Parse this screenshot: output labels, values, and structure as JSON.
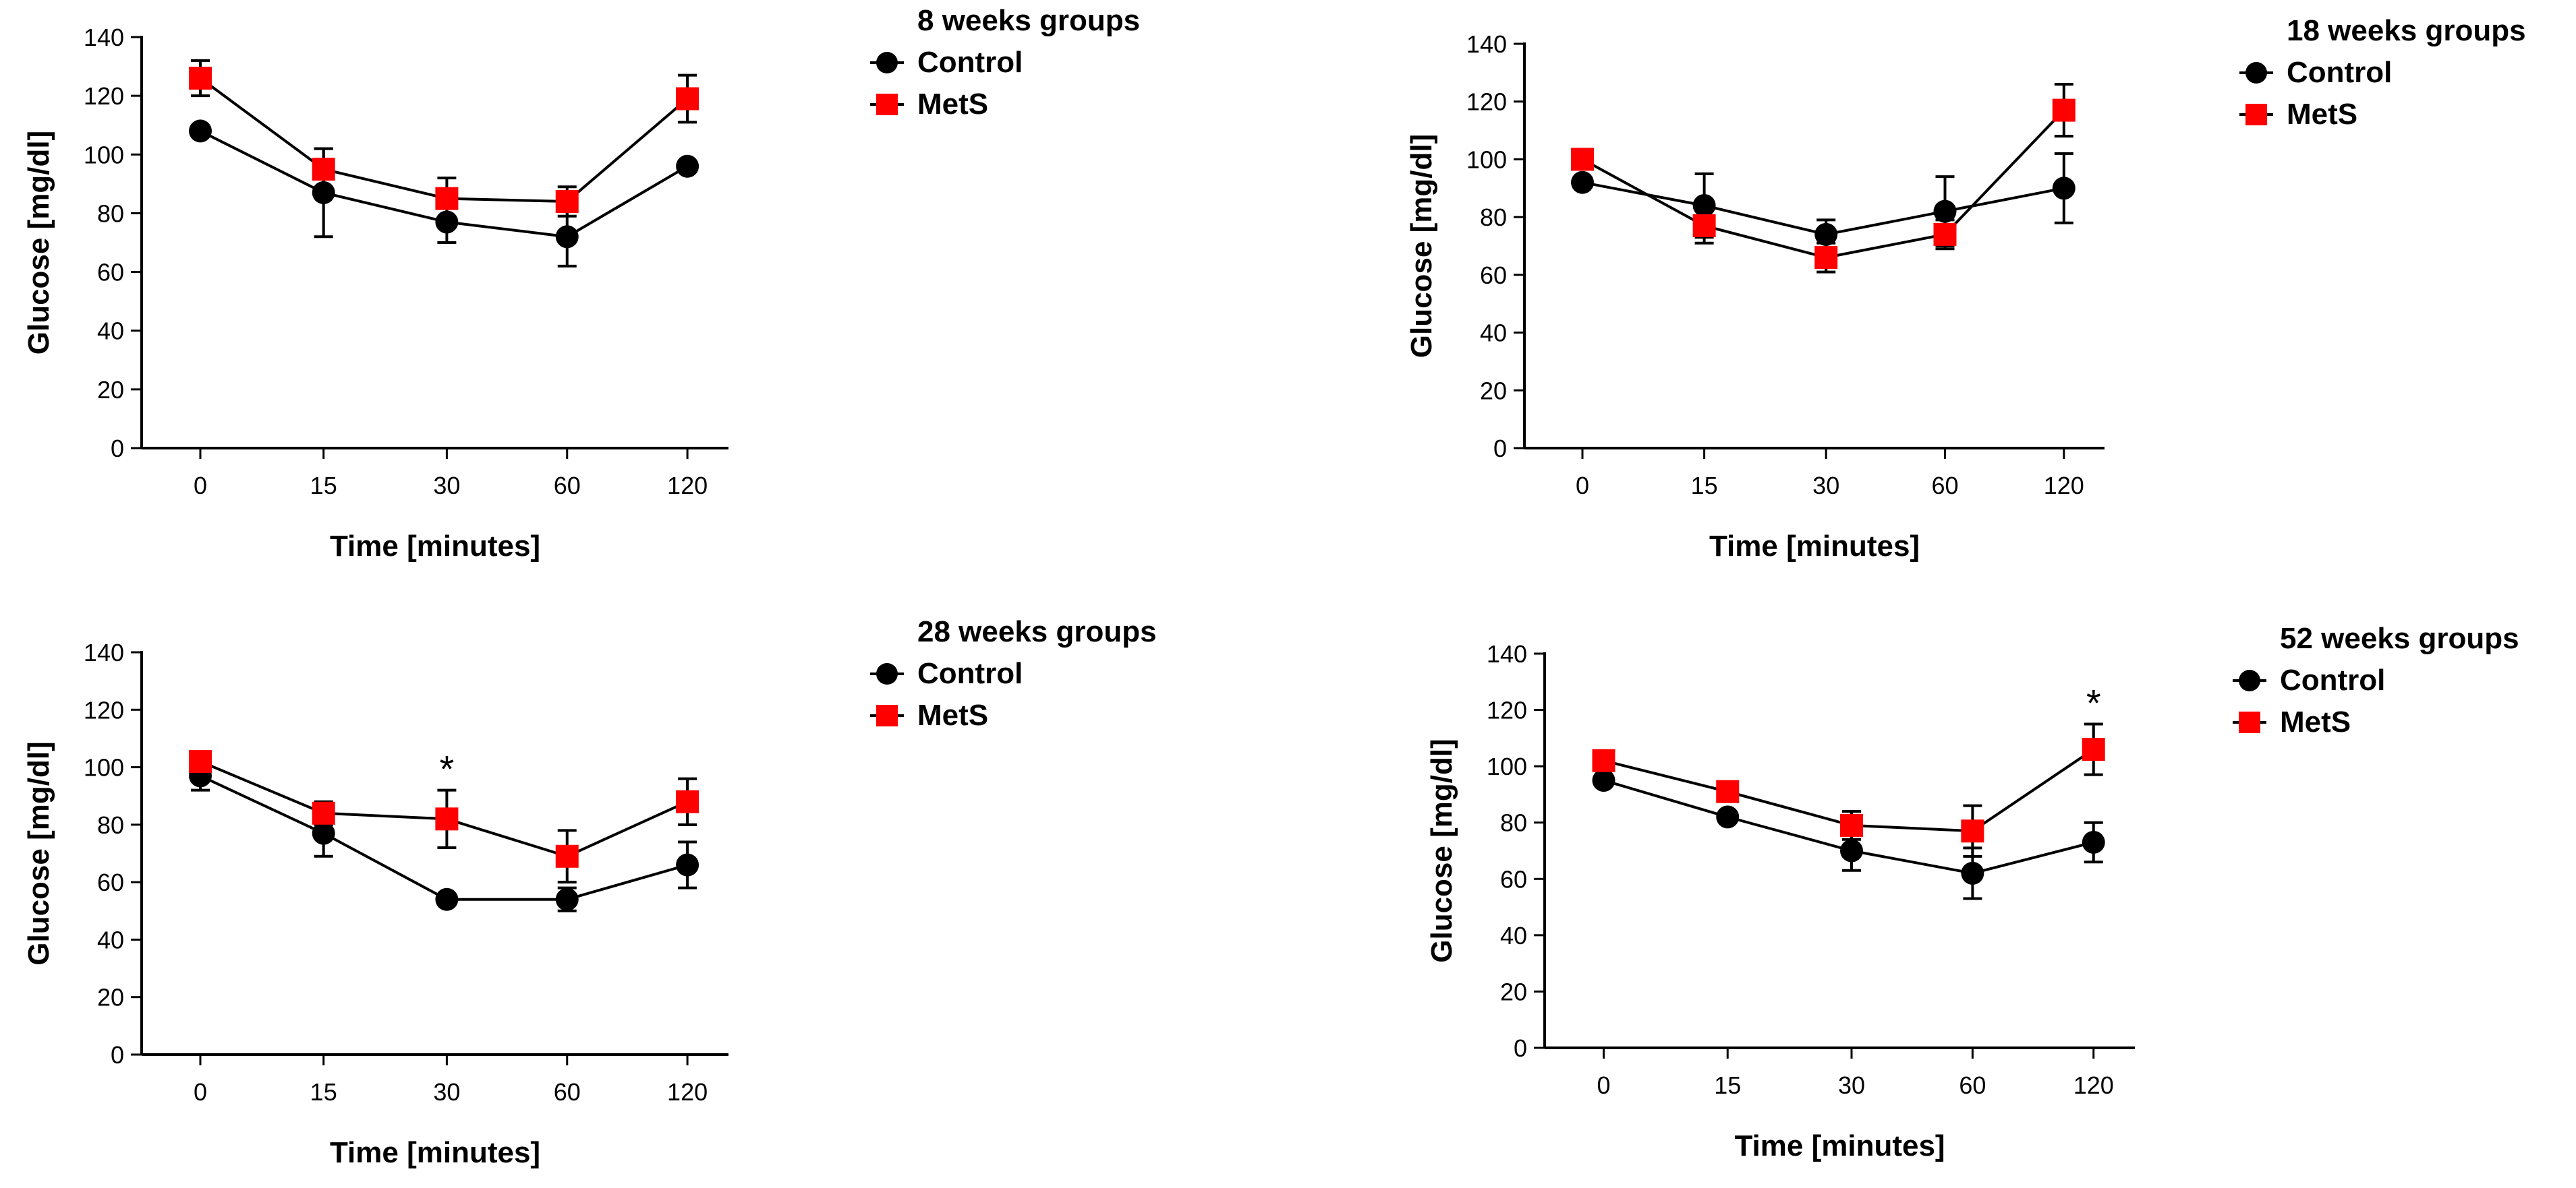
{
  "colors": {
    "control": "#000000",
    "mets": "#ff0000",
    "axis": "#000000"
  },
  "chart_data": [
    {
      "type": "line",
      "title": "8 weeks groups",
      "xlabel": "Time [minutes]",
      "ylabel": "Glucose [mg/dl]",
      "categories": [
        "0",
        "15",
        "30",
        "60",
        "120"
      ],
      "ylim": [
        0,
        140
      ],
      "yticks": [
        0,
        20,
        40,
        60,
        80,
        100,
        120,
        140
      ],
      "legend": {
        "title": "8 weeks groups",
        "placement": "top-right"
      },
      "series": [
        {
          "name": "Control",
          "marker": "circle",
          "values": [
            108,
            87,
            77,
            72,
            96
          ],
          "errors": [
            0,
            15,
            7,
            10,
            0
          ]
        },
        {
          "name": "MetS",
          "marker": "square",
          "values": [
            126,
            95,
            85,
            84,
            119
          ],
          "errors": [
            6,
            7,
            7,
            5,
            8
          ]
        }
      ],
      "annotations": []
    },
    {
      "type": "line",
      "title": "18 weeks groups",
      "xlabel": "Time [minutes]",
      "ylabel": "Glucose [mg/dl]",
      "categories": [
        "0",
        "15",
        "30",
        "60",
        "120"
      ],
      "ylim": [
        0,
        140
      ],
      "yticks": [
        0,
        20,
        40,
        60,
        80,
        100,
        120,
        140
      ],
      "legend": {
        "title": "18 weeks groups",
        "placement": "top-right"
      },
      "series": [
        {
          "name": "Control",
          "marker": "circle",
          "values": [
            92,
            84,
            74,
            82,
            90
          ],
          "errors": [
            0,
            11,
            5,
            12,
            12
          ]
        },
        {
          "name": "MetS",
          "marker": "square",
          "values": [
            100,
            77,
            66,
            74,
            117
          ],
          "errors": [
            0,
            6,
            5,
            5,
            9
          ]
        }
      ],
      "annotations": []
    },
    {
      "type": "line",
      "title": "28 weeks groups",
      "xlabel": "Time [minutes]",
      "ylabel": "Glucose [mg/dl]",
      "categories": [
        "0",
        "15",
        "30",
        "60",
        "120"
      ],
      "ylim": [
        0,
        140
      ],
      "yticks": [
        0,
        20,
        40,
        60,
        80,
        100,
        120,
        140
      ],
      "legend": {
        "title": "28 weeks groups",
        "placement": "top-right"
      },
      "series": [
        {
          "name": "Control",
          "marker": "circle",
          "values": [
            97,
            77,
            54,
            54,
            66
          ],
          "errors": [
            5,
            8,
            0,
            4,
            8
          ]
        },
        {
          "name": "MetS",
          "marker": "square",
          "values": [
            102,
            84,
            82,
            69,
            88
          ],
          "errors": [
            3,
            4,
            10,
            9,
            8
          ]
        }
      ],
      "annotations": [
        {
          "category": "30",
          "text": "*"
        }
      ]
    },
    {
      "type": "line",
      "title": "52 weeks groups",
      "xlabel": "Time [minutes]",
      "ylabel": "Glucose [mg/dl]",
      "categories": [
        "0",
        "15",
        "30",
        "60",
        "120"
      ],
      "ylim": [
        0,
        140
      ],
      "yticks": [
        0,
        20,
        40,
        60,
        80,
        100,
        120,
        140
      ],
      "legend": {
        "title": "52 weeks groups",
        "placement": "top-right"
      },
      "series": [
        {
          "name": "Control",
          "marker": "circle",
          "values": [
            95,
            82,
            70,
            62,
            73
          ],
          "errors": [
            0,
            0,
            7,
            9,
            7
          ]
        },
        {
          "name": "MetS",
          "marker": "square",
          "values": [
            102,
            91,
            79,
            77,
            106
          ],
          "errors": [
            0,
            0,
            5,
            9,
            9
          ]
        }
      ],
      "annotations": [
        {
          "category": "120",
          "text": "*"
        }
      ]
    }
  ]
}
